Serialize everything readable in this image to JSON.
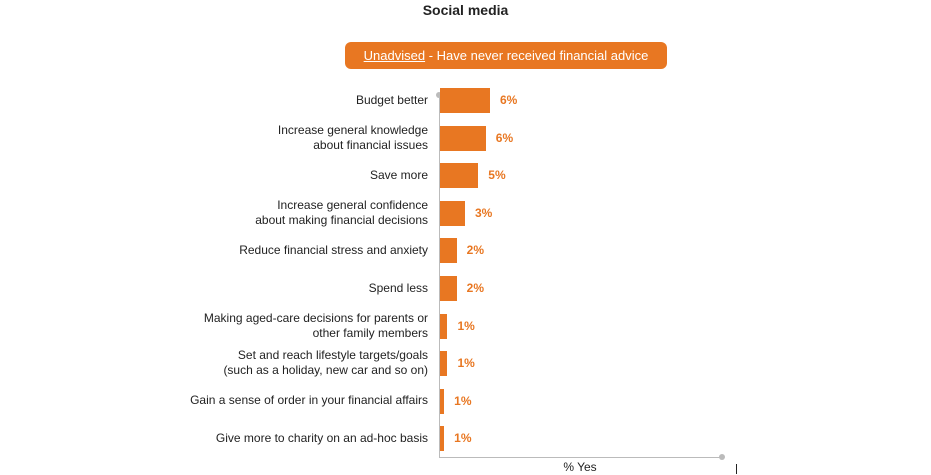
{
  "chart_data": {
    "type": "bar",
    "orientation": "horizontal",
    "title": "Social media",
    "subtitle_emph": "Unadvised",
    "subtitle_rest": " - Have never received financial advice",
    "xlabel": "% Yes",
    "xlim": [
      0,
      34
    ],
    "bar_color": "#e87722",
    "categories": [
      "Budget better",
      "Increase general knowledge about financial issues",
      "Save more",
      "Increase general confidence about making financial decisions",
      "Reduce financial stress and anxiety",
      "Spend less",
      "Making aged-care decisions for parents or other family members",
      "Set and reach lifestyle targets/goals (such as a holiday, new car and so on)",
      "Gain a sense of order in your financial affairs",
      "Give more to charity on an ad-hoc basis"
    ],
    "category_lines": [
      [
        "Budget better"
      ],
      [
        "Increase general knowledge",
        "about financial issues"
      ],
      [
        "Save more"
      ],
      [
        "Increase general confidence",
        "about making financial decisions"
      ],
      [
        "Reduce financial stress and anxiety"
      ],
      [
        "Spend less"
      ],
      [
        "Making aged-care decisions for parents or",
        "other family members"
      ],
      [
        "Set and reach lifestyle targets/goals",
        "(such as a holiday, new car and so on)"
      ],
      [
        "Gain a sense of order in your financial affairs"
      ],
      [
        "Give more to charity on an ad-hoc basis"
      ]
    ],
    "values": [
      6.0,
      5.5,
      4.6,
      3.0,
      2.0,
      2.0,
      0.9,
      0.9,
      0.5,
      0.5
    ],
    "labels": [
      "6%",
      "6%",
      "5%",
      "3%",
      "2%",
      "2%",
      "1%",
      "1%",
      "1%",
      "1%"
    ]
  }
}
